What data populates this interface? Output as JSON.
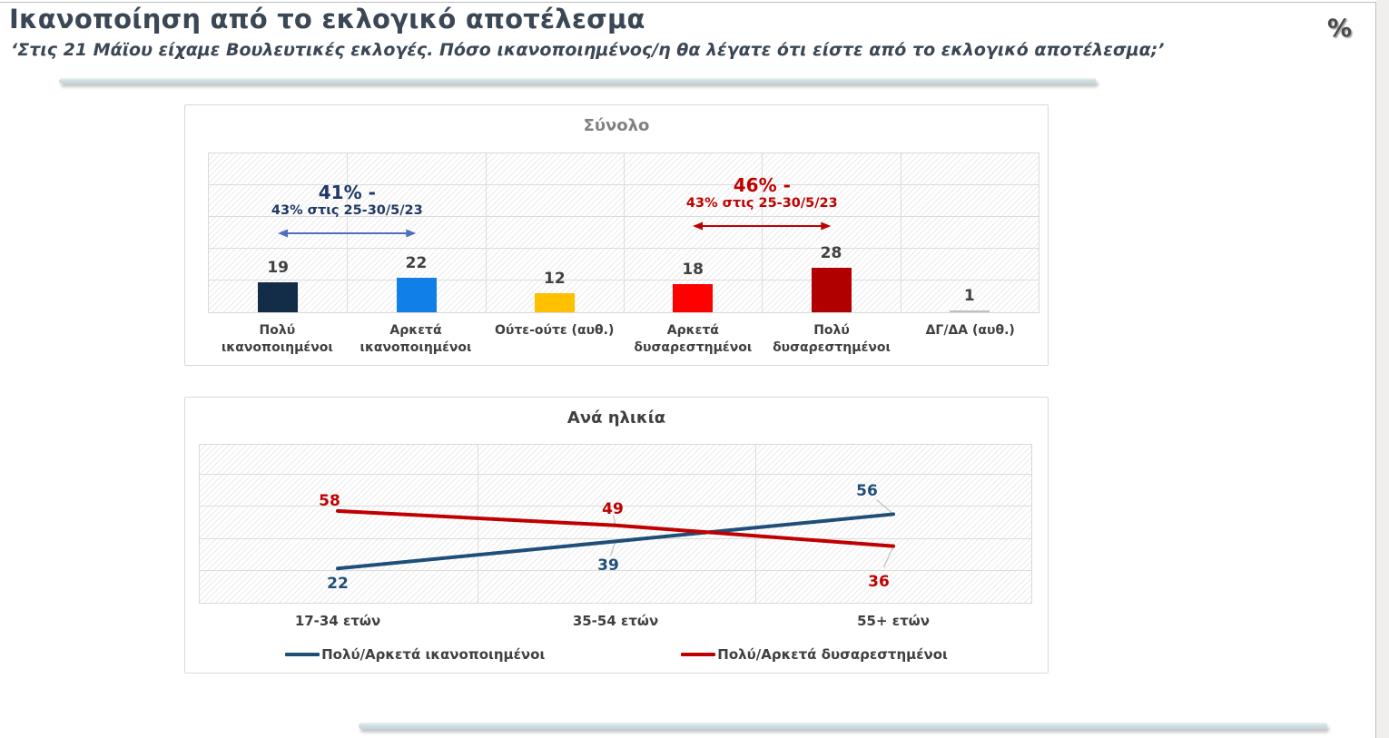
{
  "header": {
    "title": "Ικανοποίηση από το εκλογικό αποτέλεσμα",
    "subtitle": "‘Στις 21 Μάϊου είχαμε Βουλευτικές εκλογές. Πόσο ικανοποιημένος/η θα λέγατε ότι είστε από το εκλογικό αποτέλεσμα;’",
    "unit": "%"
  },
  "colors": {
    "title_text": "#3B4754",
    "panel_title_total": "#808080",
    "panel_title_age": "#404040",
    "value_labels": "#404040",
    "gridline": "#DCDCDC",
    "satisfied_line": "#1F4E79",
    "dissatisfied_line": "#C00000"
  },
  "chart_data": [
    {
      "type": "bar",
      "title": "Σύνολο",
      "categories": [
        "Πολύ ικανοποιημένοι",
        "Αρκετά ικανοποιημένοι",
        "Ούτε-ούτε (αυθ.)",
        "Αρκετά δυσαρεστημένοι",
        "Πολύ δυσαρεστημένοι",
        "ΔΓ/ΔΑ (αυθ.)"
      ],
      "values": [
        19,
        22,
        12,
        18,
        28,
        1
      ],
      "bar_colors": [
        "#132C48",
        "#1080E8",
        "#FFC000",
        "#FF0000",
        "#B00000",
        "#BFBFBF"
      ],
      "ylim": [
        0,
        100
      ],
      "grid_step": 20,
      "annotations": [
        {
          "headline": "41% -",
          "detail": "43% στις 25-30/5/23",
          "text_color": "#1F3864",
          "arrow_color": "#4C6FBE",
          "span_categories": [
            0,
            1
          ]
        },
        {
          "headline": "46% -",
          "detail": "43% στις 25-30/5/23",
          "text_color": "#C00000",
          "arrow_color": "#C00000",
          "span_categories": [
            3,
            4
          ]
        }
      ]
    },
    {
      "type": "line",
      "title": "Ανά ηλικία",
      "categories": [
        "17-34 ετών",
        "35-54 ετών",
        "55+ ετών"
      ],
      "series": [
        {
          "name": "Πολύ/Αρκετά ικανοποιημένοι",
          "color": "#1F4E79",
          "values": [
            22,
            39,
            56
          ]
        },
        {
          "name": "Πολύ/Αρκετά δυσαρεστημένοι",
          "color": "#C00000",
          "values": [
            58,
            49,
            36
          ]
        }
      ],
      "ylim": [
        0,
        100
      ],
      "grid_step": 20,
      "legend_position": "bottom"
    }
  ]
}
